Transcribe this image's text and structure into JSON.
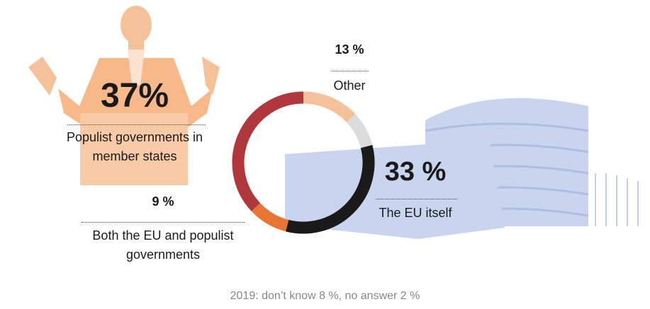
{
  "chart_data": {
    "type": "donut",
    "categories": [
      "Other",
      null,
      "The EU itself",
      "Both the EU and populist governments",
      "Populist governments in member states"
    ],
    "values": [
      13,
      8,
      33,
      9,
      37
    ],
    "value_labels": [
      "13 %",
      null,
      "33 %",
      "9 %",
      "37%"
    ],
    "colors": [
      "#f5c199",
      "#dcdcdc",
      "#1a1a1a",
      "#e87532",
      "#b0373c"
    ],
    "note": "2019: don’t know 8 %, no answer 2 %"
  }
}
